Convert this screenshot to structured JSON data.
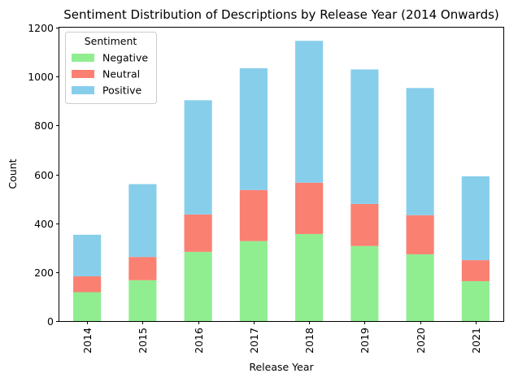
{
  "chart_data": {
    "type": "bar",
    "stacked": true,
    "title": "Sentiment Distribution of Descriptions by Release Year (2014 Onwards)",
    "xlabel": "Release Year",
    "ylabel": "Count",
    "ylim": [
      0,
      1200
    ],
    "yticks": [
      0,
      200,
      400,
      600,
      800,
      1000,
      1200
    ],
    "categories": [
      "2014",
      "2015",
      "2016",
      "2017",
      "2018",
      "2019",
      "2020",
      "2021"
    ],
    "series": [
      {
        "name": "Negative",
        "color": "#90ee90",
        "values": [
          118,
          167,
          283,
          327,
          356,
          307,
          273,
          163
        ]
      },
      {
        "name": "Neutral",
        "color": "#fa8072",
        "values": [
          65,
          95,
          153,
          209,
          210,
          172,
          160,
          86
        ]
      },
      {
        "name": "Positive",
        "color": "#87ceeb",
        "values": [
          170,
          298,
          467,
          498,
          580,
          550,
          520,
          343
        ]
      }
    ],
    "legend": {
      "title": "Sentiment",
      "placement": "top-left"
    },
    "grid": false
  }
}
